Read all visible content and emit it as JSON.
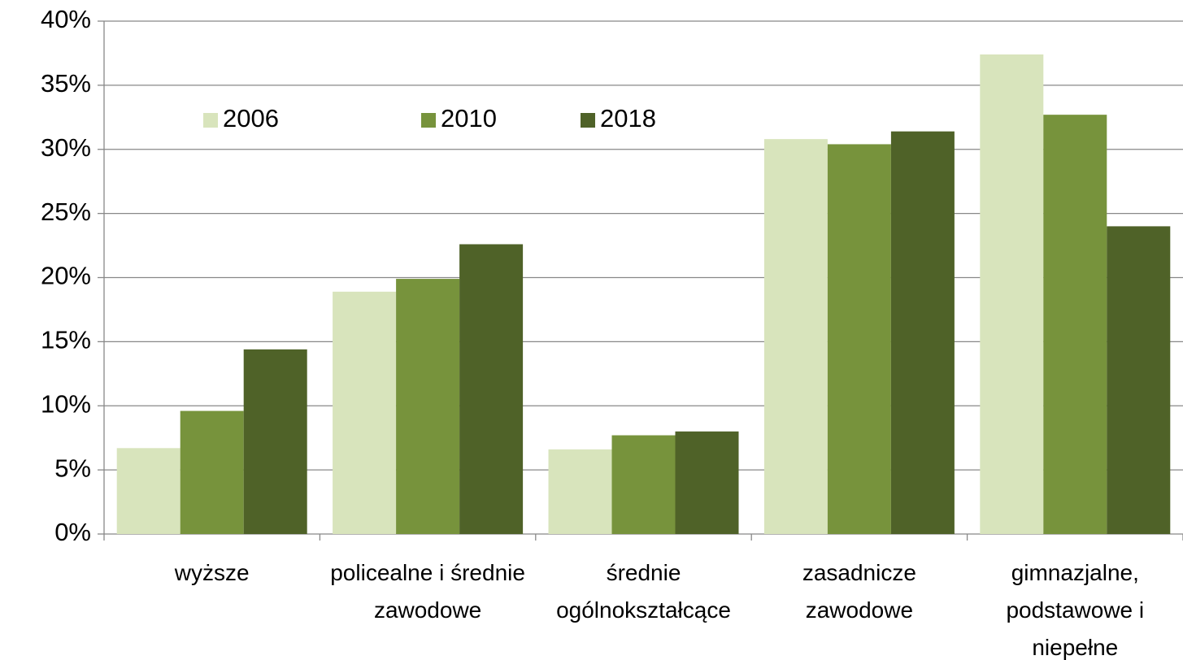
{
  "chart_data": {
    "type": "bar",
    "categories": [
      "wyższe",
      "policealne i średnie zawodowe",
      "średnie ogólnokształcące",
      "zasadnicze zawodowe",
      "gimnazjalne, podstawowe i niepełne"
    ],
    "series": [
      {
        "name": "2006",
        "color": "#d8e4bc",
        "values": [
          6.7,
          18.9,
          6.6,
          30.8,
          37.4
        ]
      },
      {
        "name": "2010",
        "color": "#77933c",
        "values": [
          9.6,
          19.9,
          7.7,
          30.4,
          32.7
        ]
      },
      {
        "name": "2018",
        "color": "#4f6228",
        "values": [
          14.4,
          22.6,
          8.0,
          31.4,
          24.0
        ]
      }
    ],
    "ylim": [
      0,
      40
    ],
    "yticks": [
      {
        "value": 0,
        "label": "0%"
      },
      {
        "value": 5,
        "label": "5%"
      },
      {
        "value": 10,
        "label": "10%"
      },
      {
        "value": 15,
        "label": "15%"
      },
      {
        "value": 20,
        "label": "20%"
      },
      {
        "value": 25,
        "label": "25%"
      },
      {
        "value": 30,
        "label": "30%"
      },
      {
        "value": 35,
        "label": "35%"
      },
      {
        "value": 40,
        "label": "40%"
      }
    ],
    "grid": true,
    "legend": "top"
  }
}
